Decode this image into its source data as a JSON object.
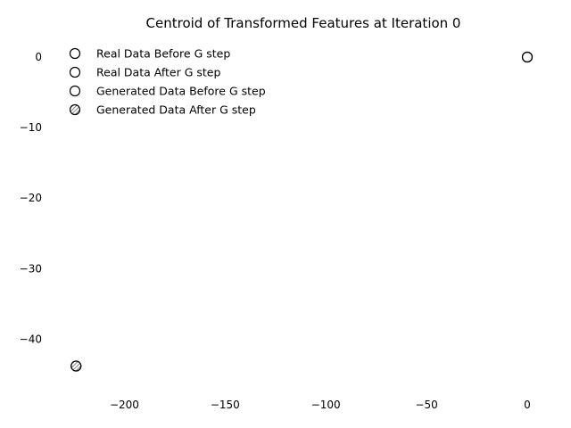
{
  "chart_data": {
    "type": "scatter",
    "title": "Centroid of Transformed Features at Iteration 0",
    "xlabel": "",
    "ylabel": "",
    "xlim": [
      -225,
      0
    ],
    "ylim": [
      -45,
      0
    ],
    "xticks": [
      -200,
      -150,
      -100,
      -50,
      0
    ],
    "yticks": [
      0,
      -10,
      -20,
      -30,
      -40
    ],
    "xtick_labels": [
      "−200",
      "−150",
      "−100",
      "−50",
      "0"
    ],
    "ytick_labels": [
      "0",
      "−10",
      "−20",
      "−30",
      "−40"
    ],
    "grid": false,
    "legend_position": "top-left",
    "series": [
      {
        "name": "Real Data Before G step",
        "marker": "open-circle",
        "points": [
          [
            0.0,
            0.0
          ]
        ]
      },
      {
        "name": "Real Data After G step",
        "marker": "open-circle",
        "points": [
          [
            0.0,
            0.0
          ]
        ]
      },
      {
        "name": "Generated Data Before G step",
        "marker": "open-circle",
        "points": [
          [
            -224.0,
            -43.8
          ]
        ]
      },
      {
        "name": "Generated Data After G step",
        "marker": "hatched-circle",
        "points": [
          [
            -224.0,
            -43.8
          ]
        ]
      }
    ]
  }
}
